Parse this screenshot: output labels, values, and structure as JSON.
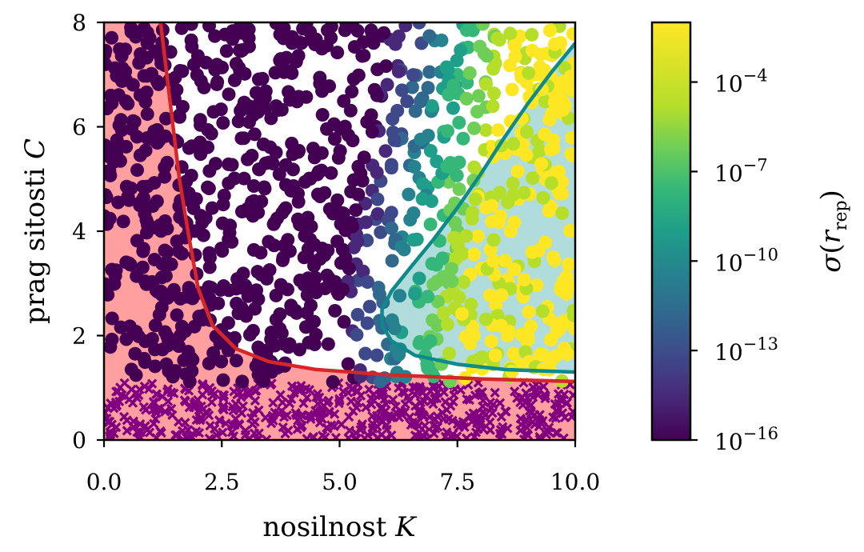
{
  "chart_data": {
    "type": "scatter",
    "xlabel": "nosilnost K",
    "ylabel": "prag sitosti C",
    "xlim": [
      0,
      10
    ],
    "ylim": [
      0,
      8
    ],
    "xticks": [
      {
        "v": 0,
        "label": "0.0"
      },
      {
        "v": 2.5,
        "label": "2.5"
      },
      {
        "v": 5,
        "label": "5.0"
      },
      {
        "v": 7.5,
        "label": "7.5"
      },
      {
        "v": 10,
        "label": "10.0"
      }
    ],
    "yticks": [
      {
        "v": 0,
        "label": "0"
      },
      {
        "v": 2,
        "label": "2"
      },
      {
        "v": 4,
        "label": "4"
      },
      {
        "v": 6,
        "label": "6"
      },
      {
        "v": 8,
        "label": "8"
      }
    ],
    "colorbar": {
      "label": "σ(r_rep)",
      "scale": "log",
      "range": [
        1e-16,
        0.01
      ],
      "ticks": [
        {
          "exp": -16,
          "label": "10",
          "sup": "−16"
        },
        {
          "exp": -13,
          "label": "10",
          "sup": "−13"
        },
        {
          "exp": -10,
          "label": "10",
          "sup": "−10"
        },
        {
          "exp": -7,
          "label": "10",
          "sup": "−7"
        },
        {
          "exp": -4,
          "label": "10",
          "sup": "−4"
        }
      ]
    },
    "regions": {
      "red_region_color": "#ff9f9f",
      "teal_region_color": "#b0dcdc",
      "red_curve_color": "#d62728",
      "teal_curve_color": "#0e8a8a",
      "cross_marker_color": "#800080"
    },
    "red_curve": [
      [
        1.2,
        8.0
      ],
      [
        1.4,
        6.5
      ],
      [
        1.6,
        5.0
      ],
      [
        1.8,
        3.9
      ],
      [
        2.0,
        2.9
      ],
      [
        2.3,
        2.2
      ],
      [
        2.8,
        1.75
      ],
      [
        3.5,
        1.5
      ],
      [
        4.5,
        1.35
      ],
      [
        6.0,
        1.25
      ],
      [
        8.0,
        1.17
      ],
      [
        10.0,
        1.12
      ]
    ],
    "teal_curve": [
      [
        10.0,
        7.6
      ],
      [
        9.5,
        7.05
      ],
      [
        9.0,
        6.45
      ],
      [
        8.5,
        5.8
      ],
      [
        8.0,
        5.1
      ],
      [
        7.5,
        4.45
      ],
      [
        7.0,
        3.85
      ],
      [
        6.5,
        3.3
      ],
      [
        6.1,
        2.85
      ],
      [
        5.9,
        2.5
      ],
      [
        5.9,
        2.2
      ],
      [
        6.1,
        1.9
      ],
      [
        6.6,
        1.62
      ],
      [
        7.5,
        1.45
      ],
      [
        8.5,
        1.35
      ],
      [
        10.0,
        1.3
      ]
    ],
    "cross_band_max_C": 1.1
  }
}
